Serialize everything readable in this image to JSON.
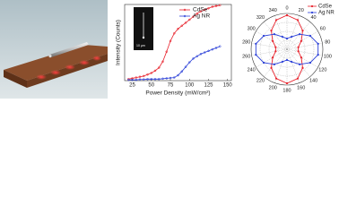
{
  "chart_data": [
    {
      "type": "line",
      "xlabel": "Power Density (mW/cm²)",
      "ylabel": "Intensity (Counts)",
      "inset_label": "10 μm",
      "x": [
        20,
        25,
        30,
        35,
        40,
        45,
        50,
        55,
        60,
        65,
        70,
        75,
        80,
        85,
        90,
        95,
        100,
        105,
        110,
        115,
        120,
        125,
        130,
        135,
        140
      ],
      "xlim": [
        15,
        155
      ],
      "xticks": [
        25,
        50,
        75,
        100,
        125,
        150
      ],
      "ylim": [
        0,
        1
      ],
      "series": [
        {
          "name": "CdSe",
          "color": "#e8202a",
          "values": [
            0.02,
            0.03,
            0.04,
            0.05,
            0.06,
            0.08,
            0.1,
            0.13,
            0.17,
            0.25,
            0.38,
            0.52,
            0.62,
            0.68,
            0.72,
            0.76,
            0.8,
            0.84,
            0.88,
            0.91,
            0.93,
            0.95,
            0.97,
            0.98,
            0.99
          ]
        },
        {
          "name": "Ag NR",
          "color": "#2a3fd8",
          "values": [
            0.01,
            0.01,
            0.01,
            0.015,
            0.015,
            0.02,
            0.02,
            0.02,
            0.02,
            0.025,
            0.03,
            0.035,
            0.04,
            0.07,
            0.12,
            0.18,
            0.24,
            0.29,
            0.32,
            0.35,
            0.37,
            0.39,
            0.41,
            0.43,
            0.45
          ]
        }
      ]
    },
    {
      "type": "polar",
      "theta": [
        0,
        20,
        40,
        60,
        80,
        100,
        120,
        140,
        160,
        180,
        200,
        220,
        240,
        260,
        280,
        300,
        320,
        340
      ],
      "thetaticks": [
        0,
        20,
        40,
        60,
        80,
        100,
        120,
        140,
        160,
        180,
        200,
        220,
        240,
        260,
        280,
        300,
        320,
        340
      ],
      "rlim": [
        0,
        1
      ],
      "series": [
        {
          "name": "CdSe",
          "color": "#e8202a",
          "values": [
            0.95,
            0.87,
            0.68,
            0.46,
            0.32,
            0.32,
            0.46,
            0.68,
            0.87,
            0.95,
            0.87,
            0.68,
            0.46,
            0.32,
            0.32,
            0.46,
            0.68,
            0.87
          ]
        },
        {
          "name": "Ag NR",
          "color": "#2a3fd8",
          "values": [
            0.3,
            0.37,
            0.55,
            0.75,
            0.88,
            0.88,
            0.75,
            0.55,
            0.37,
            0.3,
            0.37,
            0.55,
            0.75,
            0.88,
            0.88,
            0.75,
            0.55,
            0.37
          ]
        }
      ]
    }
  ]
}
